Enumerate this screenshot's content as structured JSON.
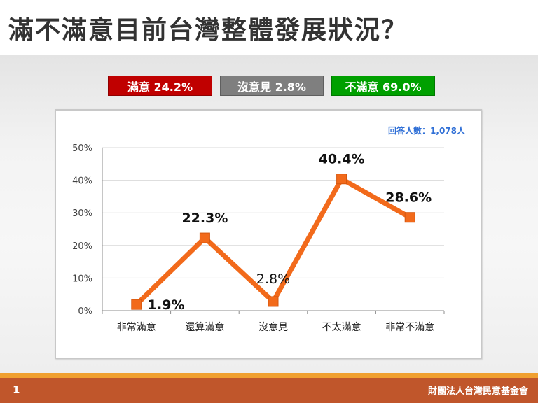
{
  "slide": {
    "title": "滿不滿意目前台灣整體發展狀況？",
    "page_number": "1",
    "organization": "財團法人台灣民意基金會"
  },
  "summary": [
    {
      "label": "滿意 24.2%",
      "color": "#c00000"
    },
    {
      "label": "沒意見 2.8%",
      "color": "#7f7f7f"
    },
    {
      "label": "不滿意 69.0%",
      "color": "#00a000"
    }
  ],
  "chart_data": {
    "type": "line",
    "categories": [
      "非常滿意",
      "還算滿意",
      "沒意見",
      "不太滿意",
      "非常不滿意"
    ],
    "values": [
      1.9,
      22.3,
      2.8,
      40.4,
      28.6
    ],
    "data_labels": [
      "1.9%",
      "22.3%",
      "2.8%",
      "40.4%",
      "28.6%"
    ],
    "ylim": [
      0,
      50
    ],
    "yticks": [
      "0%",
      "10%",
      "20%",
      "30%",
      "40%",
      "50%"
    ],
    "respondents": "回答人數：1,078人",
    "line_color": "#f26a1b",
    "grid": true
  }
}
